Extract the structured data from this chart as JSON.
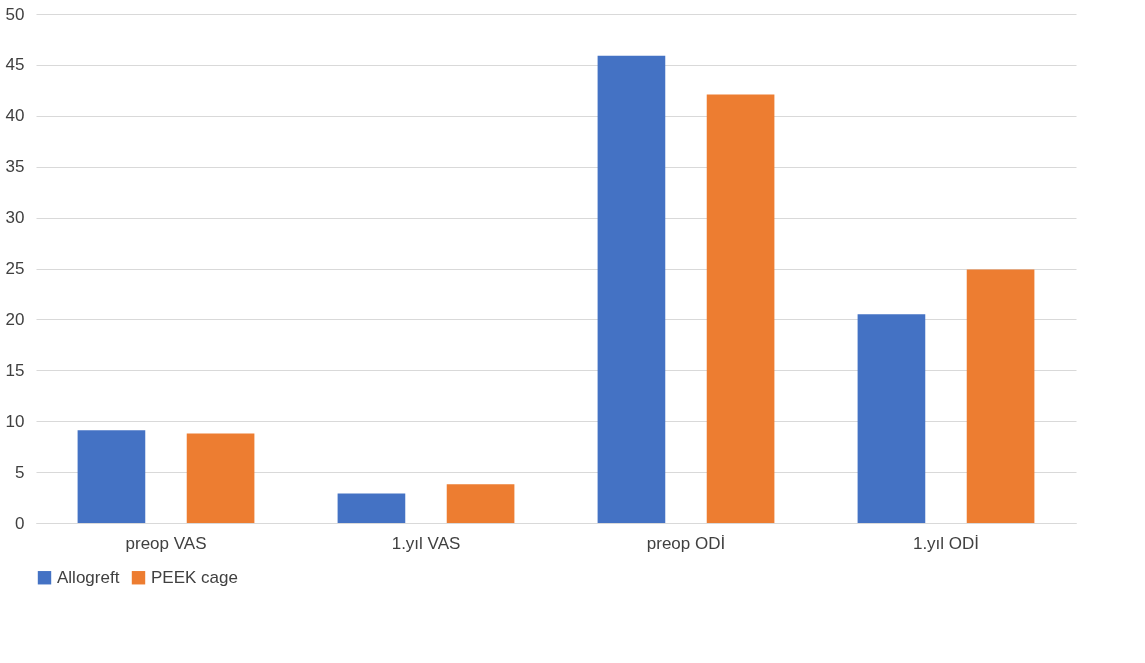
{
  "chart_data": {
    "type": "bar",
    "categories": [
      "preop VAS",
      "1.yıl VAS",
      "preop ODİ",
      "1.yıl ODİ"
    ],
    "series": [
      {
        "name": "Allogreft",
        "color": "#4472c4",
        "values": [
          9.1,
          2.9,
          45.9,
          20.5
        ]
      },
      {
        "name": "PEEK cage",
        "color": "#ed7d31",
        "values": [
          8.8,
          3.8,
          42.1,
          24.9
        ]
      }
    ],
    "ylim": [
      0,
      50
    ],
    "yticks": [
      0,
      5,
      10,
      15,
      20,
      25,
      30,
      35,
      40,
      45,
      50
    ],
    "grid": "y",
    "legend": "bottom"
  }
}
